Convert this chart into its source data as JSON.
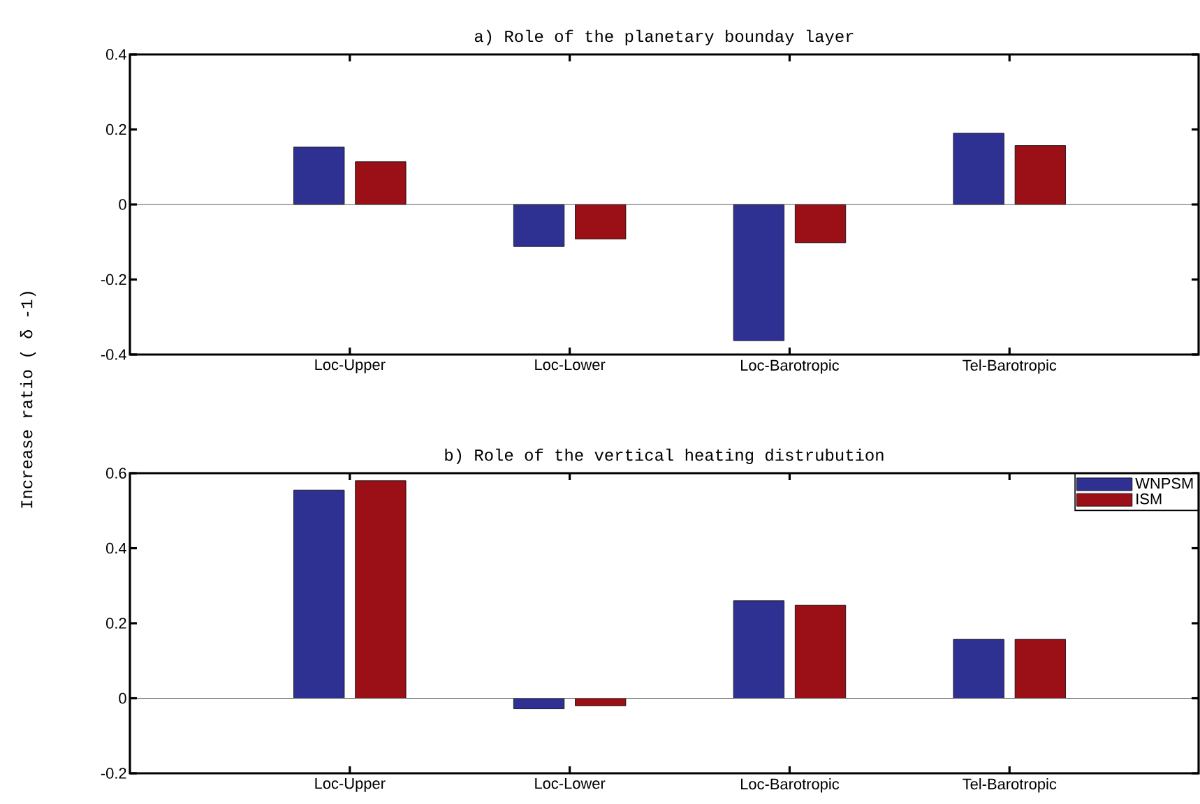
{
  "chart_data": [
    {
      "type": "bar",
      "title": "a) Role of the planetary bounday layer",
      "ylabel": "Increase ratio ( δ -1)",
      "categories": [
        "Loc-Upper",
        "Loc-Lower",
        "Loc-Barotropic",
        "Tel-Barotropic"
      ],
      "series": [
        {
          "color": "#2e3192",
          "values": [
            0.153,
            -0.112,
            -0.363,
            0.19
          ]
        },
        {
          "color": "#9b0f17",
          "values": [
            0.114,
            -0.092,
            -0.102,
            0.157
          ]
        }
      ],
      "ylim": [
        -0.4,
        0.4
      ],
      "yticks": [
        -0.4,
        -0.2,
        0,
        0.2,
        0.4
      ]
    },
    {
      "type": "bar",
      "title": "b) Role of the vertical heating distrubution",
      "categories": [
        "Loc-Upper",
        "Loc-Lower",
        "Loc-Barotropic",
        "Tel-Barotropic"
      ],
      "series": [
        {
          "name": "WNPSM",
          "color": "#2e3192",
          "values": [
            0.555,
            -0.028,
            0.26,
            0.157
          ]
        },
        {
          "name": "ISM",
          "color": "#9b0f17",
          "values": [
            0.58,
            -0.02,
            0.248,
            0.157
          ]
        }
      ],
      "ylim": [
        -0.2,
        0.6
      ],
      "yticks": [
        -0.2,
        0,
        0.2,
        0.4,
        0.6
      ],
      "legend": "top right"
    }
  ]
}
